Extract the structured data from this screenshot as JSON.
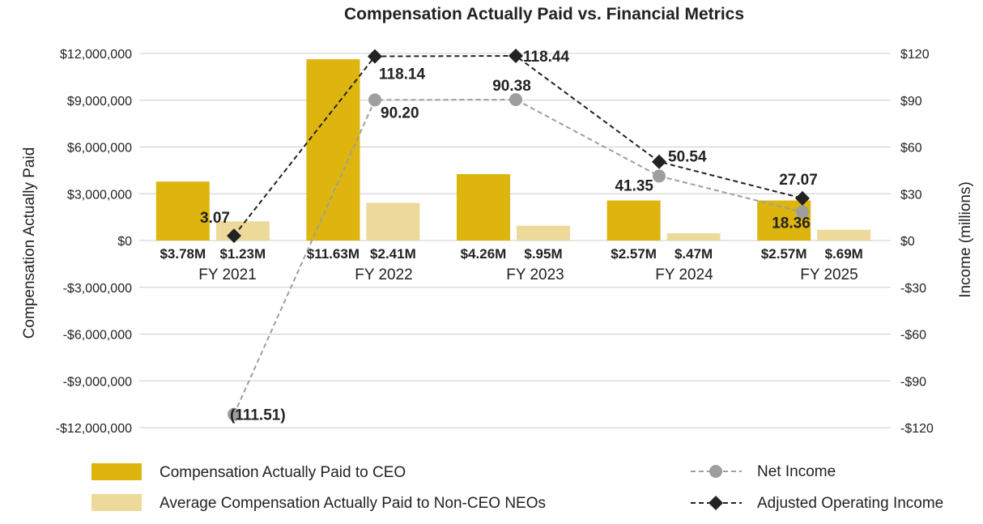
{
  "chart_data": {
    "type": "bar",
    "title": "Compensation Actually Paid vs. Financial Metrics",
    "categories": [
      "FY 2021",
      "FY 2022",
      "FY 2023",
      "FY 2024",
      "FY 2025"
    ],
    "left_axis": {
      "label": "Compensation Actually Paid",
      "ylim": [
        -12000000,
        12000000
      ],
      "ticks": [
        12000000,
        9000000,
        6000000,
        3000000,
        0,
        -3000000,
        -6000000,
        -9000000,
        -12000000
      ],
      "tick_labels": [
        "$12,000,000",
        "$9,000,000",
        "$6,000,000",
        "$3,000,000",
        "$0",
        "-$3,000,000",
        "-$6,000,000",
        "-$9,000,000",
        "-$12,000,000"
      ]
    },
    "right_axis": {
      "label": "Income (millions)",
      "ylim": [
        -120,
        120
      ],
      "ticks": [
        120,
        90,
        60,
        30,
        0,
        -30,
        -60,
        -90,
        -120
      ],
      "tick_labels": [
        "$120",
        "$90",
        "$60",
        "$30",
        "$0",
        "-$30",
        "-$60",
        "-$90",
        "-$120"
      ]
    },
    "bar_series": [
      {
        "name": "Compensation Actually Paid to CEO",
        "color": "#DDB50E",
        "values": [
          3780000,
          11630000,
          4260000,
          2570000,
          2570000
        ],
        "labels": [
          "$3.78M",
          "$11.63M",
          "$4.26M",
          "$2.57M",
          "$2.57M"
        ]
      },
      {
        "name": "Average Compensation Actually Paid to Non-CEO NEOs",
        "color": "#EDD99A",
        "values": [
          1230000,
          2410000,
          950000,
          470000,
          690000
        ],
        "labels": [
          "$1.23M",
          "$2.41M",
          "$.95M",
          "$.47M",
          "$.69M"
        ]
      }
    ],
    "line_series": [
      {
        "name": "Net Income",
        "color": "#9E9E9E",
        "marker": "circle",
        "values": [
          -111.51,
          90.2,
          90.38,
          41.35,
          18.36
        ],
        "labels": [
          "(111.51)",
          "90.20",
          "90.38",
          "41.35",
          "18.36"
        ]
      },
      {
        "name": "Adjusted Operating Income",
        "color": "#222222",
        "marker": "diamond",
        "values": [
          3.07,
          118.14,
          118.44,
          50.54,
          27.07
        ],
        "labels": [
          "3.07",
          "118.14",
          "118.44",
          "50.54",
          "27.07"
        ]
      }
    ]
  }
}
